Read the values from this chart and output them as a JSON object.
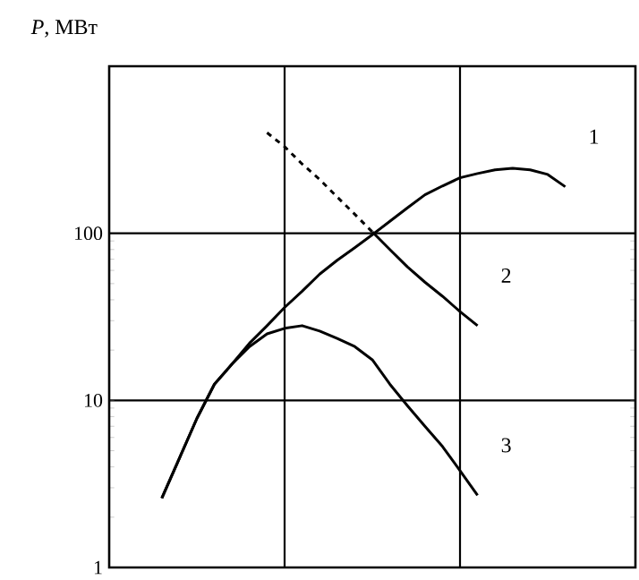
{
  "chart_data": {
    "type": "line",
    "ylabel": "*P*, МВт",
    "log": "y",
    "grid": true,
    "ylim": [
      1,
      1000
    ],
    "yticks": [
      1,
      10,
      100
    ],
    "categories": [
      null,
      null,
      null,
      null,
      null,
      null,
      null,
      null,
      null,
      null,
      null,
      null,
      null,
      null,
      null,
      null,
      null,
      null,
      null,
      null,
      null,
      null,
      null,
      null,
      null,
      null,
      null,
      null,
      null,
      null,
      null
    ],
    "series": [
      {
        "name": "1",
        "color": "#000000",
        "line_style": "solid",
        "values": [
          null,
          null,
          null,
          2.6,
          4.5,
          7.8,
          12.5,
          16.5,
          22,
          28,
          36,
          45,
          57,
          69,
          82,
          98,
          118,
          142,
          170,
          192,
          215,
          228,
          240,
          245,
          240,
          225,
          190,
          null,
          null,
          null,
          null
        ]
      },
      {
        "color": "#000000",
        "line_style": "dashed",
        "values": [
          null,
          null,
          null,
          null,
          null,
          null,
          null,
          null,
          null,
          400,
          330,
          260,
          210,
          165,
          130,
          102,
          null,
          null,
          null,
          null,
          null,
          null,
          null,
          null,
          null,
          null,
          null,
          null,
          null,
          null,
          null
        ]
      },
      {
        "name": "2",
        "color": "#000000",
        "line_style": "solid",
        "values": [
          null,
          null,
          null,
          null,
          null,
          null,
          null,
          null,
          null,
          null,
          null,
          null,
          null,
          null,
          null,
          102,
          80,
          63,
          51,
          42,
          34,
          28,
          null,
          null,
          null,
          null,
          null,
          null,
          null,
          null,
          null
        ]
      },
      {
        "name": "3",
        "color": "#000000",
        "line_style": "solid",
        "values": [
          null,
          null,
          null,
          2.6,
          4.5,
          7.8,
          12.5,
          16.5,
          21,
          25,
          27,
          28,
          26,
          23.5,
          21,
          17.5,
          12.5,
          9.3,
          7,
          5.3,
          3.8,
          2.7,
          null,
          null,
          null,
          null,
          null,
          null,
          null,
          null,
          null
        ]
      }
    ]
  }
}
